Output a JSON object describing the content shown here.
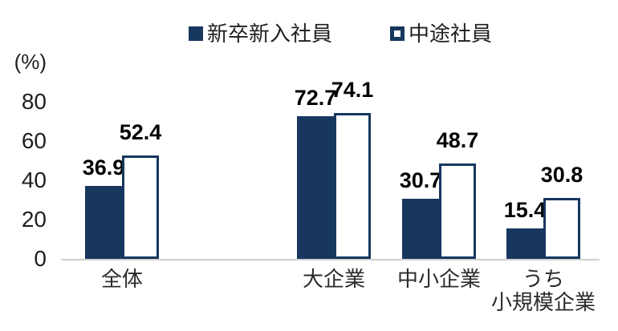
{
  "chart_data": {
    "type": "bar",
    "title": "",
    "unit_label": "(%)",
    "categories": [
      "全体",
      "大企業",
      "中小企業",
      "うち小規模企業"
    ],
    "category_label_lines": [
      [
        "全体"
      ],
      [
        "大企業"
      ],
      [
        "中小企業"
      ],
      [
        "うち",
        "小規模企業"
      ]
    ],
    "series": [
      {
        "name": "新卒新入社員",
        "style": "filled",
        "values": [
          36.9,
          72.7,
          30.7,
          15.4
        ]
      },
      {
        "name": "中途社員",
        "style": "outlined",
        "values": [
          52.4,
          74.1,
          48.7,
          30.8
        ]
      }
    ],
    "xlabel": "",
    "ylabel": "(%)",
    "yticks": [
      0,
      20,
      40,
      60,
      80
    ],
    "ylim": [
      0,
      80
    ],
    "grid": false,
    "legend_position": "top",
    "value_labels": true
  },
  "colors": {
    "bar_fill": "#17375E",
    "bar_outline": "#17375E",
    "value_label": "#000000",
    "axis_text": "#1f1f1f",
    "baseline": "#d0d0d0",
    "background": "#ffffff"
  }
}
